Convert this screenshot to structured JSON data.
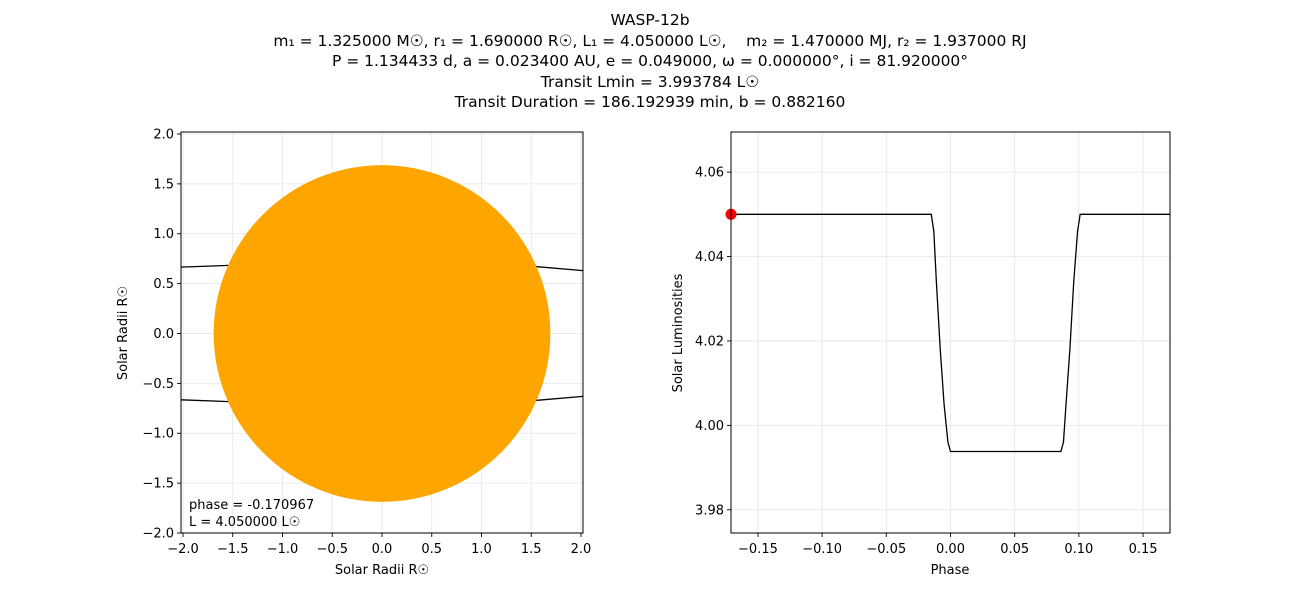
{
  "title": {
    "lines": [
      "WASP-12b",
      "m₁ = 1.325000 M☉, r₁ = 1.690000 R☉, L₁ = 4.050000 L☉,    m₂ = 1.470000 MJ, r₂ = 1.937000 RJ",
      "P = 1.134433 d, a = 0.023400 AU, e = 0.049000, ω = 0.000000°, i = 81.920000°",
      "Transit Lmin = 3.993784 L☉",
      "Transit Duration = 186.192939 min, b = 0.882160"
    ]
  },
  "colors": {
    "star": "#ffa500",
    "marker": "#ff0000",
    "line": "#000000",
    "grid": "#e5e5e5"
  },
  "chart_data": [
    {
      "type": "scatter",
      "name": "orbit-view",
      "xlabel": "Solar Radii R☉",
      "ylabel": "Solar Radii R☉",
      "xlim": [
        -2.02,
        2.02
      ],
      "ylim": [
        -2.0,
        2.02
      ],
      "xticks": [
        -2.0,
        -1.5,
        -1.0,
        -0.5,
        0.0,
        0.5,
        1.0,
        1.5,
        2.0
      ],
      "yticks": [
        -2.0,
        -1.5,
        -1.0,
        -0.5,
        0.0,
        0.5,
        1.0,
        1.5,
        2.0
      ],
      "xtick_labels": [
        "−2.0",
        "−1.5",
        "−1.0",
        "−0.5",
        "0.0",
        "0.5",
        "1.0",
        "1.5",
        "2.0"
      ],
      "ytick_labels": [
        "−2.0",
        "−1.5",
        "−1.0",
        "−0.5",
        "0.0",
        "0.5",
        "1.0",
        "1.5",
        "2.0"
      ],
      "grid": true,
      "star": {
        "cx": 0.0,
        "cy": 0.0,
        "r": 1.69
      },
      "orbit": {
        "upper": {
          "x": [
            -2.02,
            -1.5,
            -1.0,
            -0.5,
            0.0,
            0.5,
            1.0,
            1.5,
            2.02
          ],
          "y": [
            0.665,
            0.684,
            0.698,
            0.707,
            0.71,
            0.706,
            0.694,
            0.675,
            0.63
          ]
        },
        "lower": {
          "x": [
            -2.02,
            -1.5,
            -1.0,
            -0.5,
            0.0,
            0.5,
            1.0,
            1.5,
            2.02
          ],
          "y": [
            -0.665,
            -0.684,
            -0.698,
            -0.707,
            -0.71,
            -0.706,
            -0.694,
            -0.675,
            -0.63
          ]
        }
      },
      "annotation": [
        "phase = -0.170967",
        "L = 4.050000 L☉"
      ]
    },
    {
      "type": "line",
      "name": "light-curve",
      "xlabel": "Phase",
      "ylabel": "Solar Luminosities",
      "xlim": [
        -0.171,
        0.171
      ],
      "ylim": [
        3.9745,
        4.0695
      ],
      "xticks": [
        -0.15,
        -0.1,
        -0.05,
        0.0,
        0.05,
        0.1,
        0.15
      ],
      "yticks": [
        3.98,
        4.0,
        4.02,
        4.04,
        4.06
      ],
      "xtick_labels": [
        "−0.15",
        "−0.10",
        "−0.05",
        "0.00",
        "0.05",
        "0.10",
        "0.15"
      ],
      "ytick_labels": [
        "3.98",
        "4.00",
        "4.02",
        "4.04",
        "4.06"
      ],
      "grid": true,
      "series": [
        {
          "x": [
            -0.171,
            -0.015,
            -0.013,
            -0.011,
            -0.008,
            -0.005,
            -0.002,
            0.0,
            0.02,
            0.05,
            0.086,
            0.088,
            0.09,
            0.093,
            0.096,
            0.099,
            0.101,
            0.171
          ],
          "y": [
            4.05,
            4.05,
            4.046,
            4.034,
            4.018,
            4.005,
            3.996,
            3.9938,
            3.9938,
            3.9938,
            3.9938,
            3.996,
            4.005,
            4.018,
            4.034,
            4.046,
            4.05,
            4.05
          ]
        }
      ],
      "marker": {
        "x": -0.170967,
        "y": 4.05
      }
    }
  ]
}
